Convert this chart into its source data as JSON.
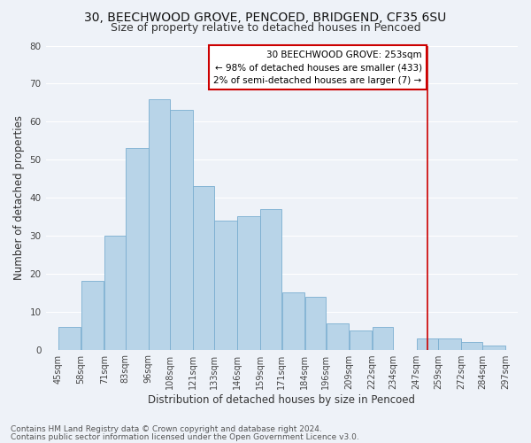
{
  "title": "30, BEECHWOOD GROVE, PENCOED, BRIDGEND, CF35 6SU",
  "subtitle": "Size of property relative to detached houses in Pencoed",
  "xlabel": "Distribution of detached houses by size in Pencoed",
  "ylabel": "Number of detached properties",
  "footnote1": "Contains HM Land Registry data © Crown copyright and database right 2024.",
  "footnote2": "Contains public sector information licensed under the Open Government Licence v3.0.",
  "bar_edges": [
    45,
    58,
    71,
    83,
    96,
    108,
    121,
    133,
    146,
    159,
    171,
    184,
    196,
    209,
    222,
    234,
    247,
    259,
    272,
    284,
    297
  ],
  "bar_heights": [
    6,
    18,
    30,
    53,
    66,
    63,
    43,
    34,
    35,
    37,
    15,
    14,
    7,
    5,
    6,
    0,
    3,
    3,
    2,
    1
  ],
  "bar_color": "#b8d4e8",
  "bar_edge_color": "#7aaed0",
  "ref_line_x": 253,
  "ref_line_color": "#cc0000",
  "annotation_line1": "30 BEECHWOOD GROVE: 253sqm",
  "annotation_line2": "← 98% of detached houses are smaller (433)",
  "annotation_line3": "2% of semi-detached houses are larger (7) →",
  "annotation_box_color": "#cc0000",
  "annotation_text_color": "#000000",
  "ylim": [
    0,
    80
  ],
  "xlim_min": 38,
  "xlim_max": 304,
  "tick_labels": [
    "45sqm",
    "58sqm",
    "71sqm",
    "83sqm",
    "96sqm",
    "108sqm",
    "121sqm",
    "133sqm",
    "146sqm",
    "159sqm",
    "171sqm",
    "184sqm",
    "196sqm",
    "209sqm",
    "222sqm",
    "234sqm",
    "247sqm",
    "259sqm",
    "272sqm",
    "284sqm",
    "297sqm"
  ],
  "background_color": "#eef2f8",
  "grid_color": "#ffffff",
  "title_fontsize": 10,
  "subtitle_fontsize": 9,
  "axis_label_fontsize": 8.5,
  "tick_fontsize": 7,
  "annotation_fontsize": 7.5,
  "footnote_fontsize": 6.5,
  "yticks": [
    0,
    10,
    20,
    30,
    40,
    50,
    60,
    70,
    80
  ]
}
